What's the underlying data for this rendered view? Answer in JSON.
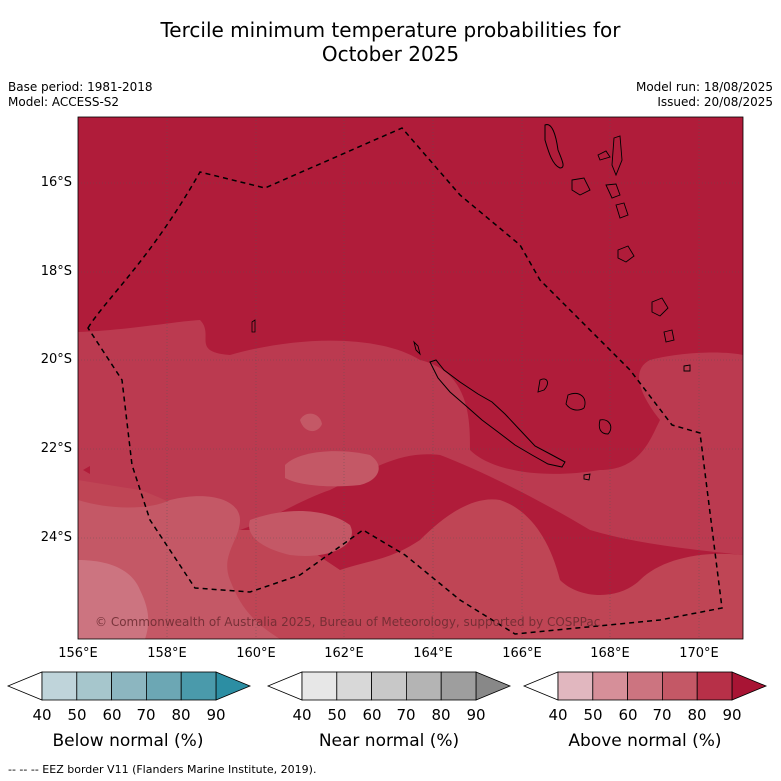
{
  "title_line1": "Tercile minimum temperature probabilities for",
  "title_line2": "October 2025",
  "base_period": "Base period: 1981-2018",
  "model": "Model: ACCESS-S2",
  "model_run": "Model run: 18/08/2025",
  "issued": "Issued: 20/08/2025",
  "lat_labels": [
    "16°S",
    "18°S",
    "20°S",
    "22°S",
    "24°S"
  ],
  "lon_labels": [
    "156°E",
    "158°E",
    "160°E",
    "162°E",
    "164°E",
    "166°E",
    "168°E",
    "170°E"
  ],
  "copyright": "© Commonwealth of Australia 2025, Bureau of Meteorology, supported by COSPPac",
  "colorbars": [
    {
      "label": "Below normal (%)",
      "ticks": [
        "40",
        "50",
        "60",
        "70",
        "80",
        "90"
      ],
      "colors": [
        "#bfd4da",
        "#a6c6cc",
        "#8cb6c0",
        "#6ca7b4",
        "#4a9aab",
        "#2c8ea3"
      ]
    },
    {
      "label": "Near normal (%)",
      "ticks": [
        "40",
        "50",
        "60",
        "70",
        "80",
        "90"
      ],
      "colors": [
        "#e7e7e7",
        "#d8d8d8",
        "#c8c8c8",
        "#b4b4b4",
        "#9e9e9e",
        "#888888"
      ]
    },
    {
      "label": "Above normal (%)",
      "ticks": [
        "40",
        "50",
        "60",
        "70",
        "80",
        "90"
      ],
      "colors": [
        "#e1b7bf",
        "#d68f99",
        "#cc7480",
        "#c45866",
        "#b73048",
        "#a81434"
      ]
    }
  ],
  "footer": "--  --  -- EEZ border V11 (Flanders Marine Institute, 2019).",
  "colors": {
    "above_80": "#b01c3a",
    "above_70": "#bb3a50",
    "above_60": "#c45866",
    "above_50": "#cc7480"
  }
}
